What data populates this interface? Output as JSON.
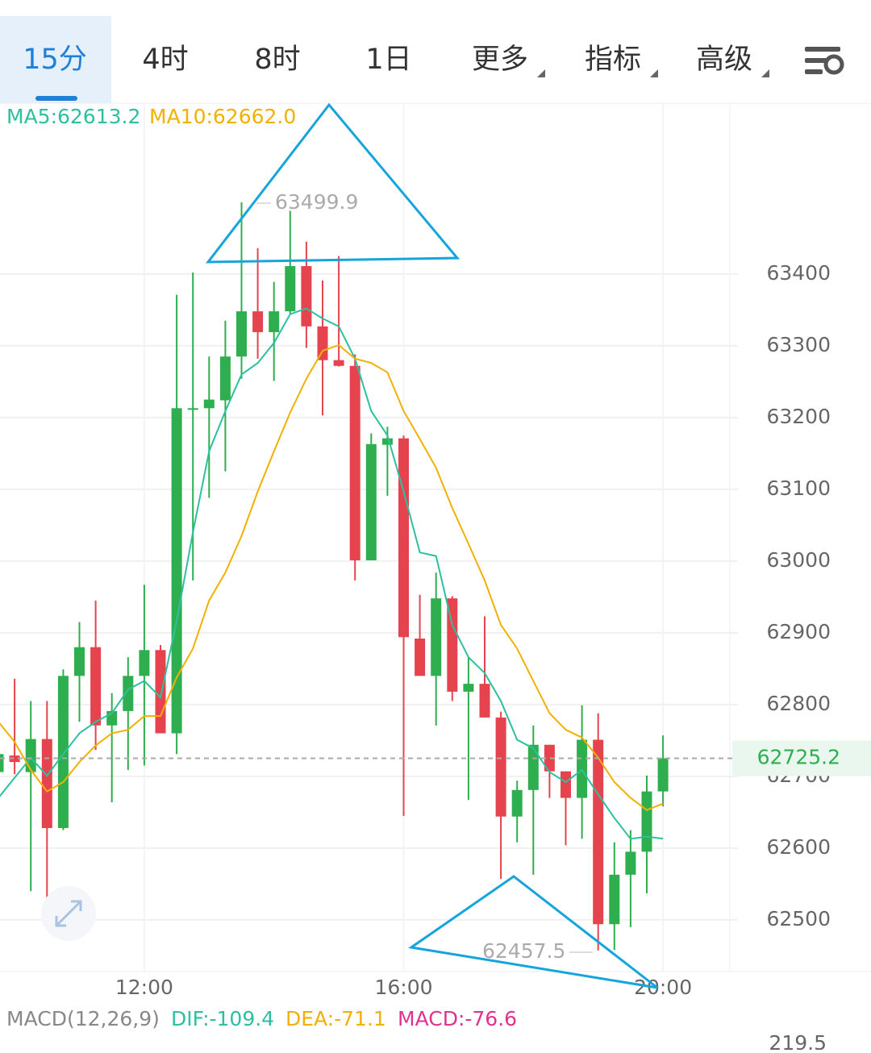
{
  "ui": {
    "tabs": [
      "15分",
      "4时",
      "8时",
      "1日",
      "更多",
      "指标",
      "高级"
    ]
  },
  "chart_data": {
    "type": "candlestick",
    "categories": [
      null,
      null,
      null,
      null,
      null,
      null,
      null,
      null,
      null,
      "12:00",
      null,
      null,
      null,
      null,
      null,
      null,
      null,
      null,
      null,
      null,
      null,
      null,
      null,
      null,
      null,
      "16:00",
      null,
      null,
      null,
      null,
      null,
      null,
      null,
      null,
      null,
      null,
      null,
      null,
      null,
      null,
      null,
      "20:00"
    ],
    "ohlc": [
      [
        62706,
        62737,
        62670,
        62731
      ],
      [
        62729,
        62836,
        62703,
        62720
      ],
      [
        62706,
        62805,
        62540,
        62752
      ],
      [
        62752,
        62805,
        62507,
        62628
      ],
      [
        62628,
        62849,
        62625,
        62840
      ],
      [
        62840,
        62915,
        62776,
        62880
      ],
      [
        62880,
        62945,
        62737,
        62771
      ],
      [
        62771,
        62816,
        62664,
        62791
      ],
      [
        62791,
        62866,
        62709,
        62840
      ],
      [
        62840,
        62967,
        62715,
        62876
      ],
      [
        62876,
        62883,
        62760,
        62760
      ],
      [
        62760,
        63371,
        62731,
        63213
      ],
      [
        63211,
        63402,
        62973,
        63213
      ],
      [
        63213,
        63285,
        63088,
        63225
      ],
      [
        63224,
        63335,
        63125,
        63285
      ],
      [
        63285,
        63499.9,
        63254,
        63348
      ],
      [
        63348,
        63436,
        63282,
        63319
      ],
      [
        63319,
        63389,
        63251,
        63348
      ],
      [
        63348,
        63488,
        63344,
        63411
      ],
      [
        63411,
        63445,
        63297,
        63327
      ],
      [
        63327,
        63391,
        63203,
        63280
      ],
      [
        63280,
        63425,
        63271,
        63272
      ],
      [
        63272,
        63288,
        62973,
        63001
      ],
      [
        63001,
        63178,
        63001,
        63163
      ],
      [
        63162,
        63187,
        63091,
        63171
      ],
      [
        63171,
        63175,
        62645,
        62894
      ],
      [
        62892,
        62953,
        62840,
        62840
      ],
      [
        62840,
        62984,
        62771,
        62948
      ],
      [
        62948,
        62951,
        62805,
        62818
      ],
      [
        62818,
        62866,
        62667,
        62829
      ],
      [
        62829,
        62923,
        62782,
        62782
      ],
      [
        62782,
        62790,
        62557,
        62644
      ],
      [
        62644,
        62694,
        62608,
        62681
      ],
      [
        62681,
        62771,
        62563,
        62744
      ],
      [
        62744,
        62744,
        62670,
        62707
      ],
      [
        62707,
        62707,
        62604,
        62670
      ],
      [
        62670,
        62799,
        62613,
        62751
      ],
      [
        62751,
        62788,
        62457.5,
        62494
      ],
      [
        62494,
        62608,
        62458,
        62563
      ],
      [
        62563,
        62625,
        62490,
        62595
      ],
      [
        62595,
        62701,
        62537,
        62679
      ],
      [
        62679,
        62757,
        62658,
        62725.2
      ]
    ],
    "up_color": "#2fae4f",
    "down_color": "#e5444f",
    "series": [
      {
        "name": "MA5:62613.2",
        "color": "#2cc0a0",
        "values": [
          62670,
          62698,
          62726,
          62701,
          62731,
          62760,
          62776,
          62788,
          62821,
          62833,
          62810,
          62917,
          63040,
          63153,
          63209,
          63260,
          63276,
          63304,
          63344,
          63352,
          63338,
          63327,
          63282,
          63209,
          63175,
          63097,
          63012,
          63007,
          62911,
          62866,
          62844,
          62805,
          62751,
          62739,
          62706,
          62692,
          62709,
          62675,
          62642,
          62613,
          62616,
          62613.2
        ]
      },
      {
        "name": "MA10:62662.0",
        "color": "#f2b000",
        "values": [
          62776,
          62748,
          62709,
          62679,
          62692,
          62720,
          62743,
          62760,
          62765,
          62784,
          62784,
          62838,
          62878,
          62945,
          62984,
          63035,
          63097,
          63153,
          63207,
          63254,
          63293,
          63301,
          63282,
          63276,
          63263,
          63209,
          63170,
          63130,
          63074,
          63024,
          62973,
          62911,
          62878,
          62833,
          62788,
          62765,
          62754,
          62726,
          62692,
          62670,
          62653,
          62662
        ]
      }
    ],
    "ylim": [
      62428,
      63638
    ],
    "yticks": [
      62500,
      62600,
      62700,
      62800,
      62900,
      63000,
      63100,
      63200,
      63300,
      63400
    ],
    "grid": true,
    "max_label": 63499.9,
    "min_label": 62457.5,
    "last_price": 62725.2,
    "macd": {
      "title": "MACD(12,26,9)",
      "dif": "DIF:-109.4",
      "dea": "DEA:-71.1",
      "macd": "MACD:-76.6",
      "top_tick": 219.5
    }
  }
}
